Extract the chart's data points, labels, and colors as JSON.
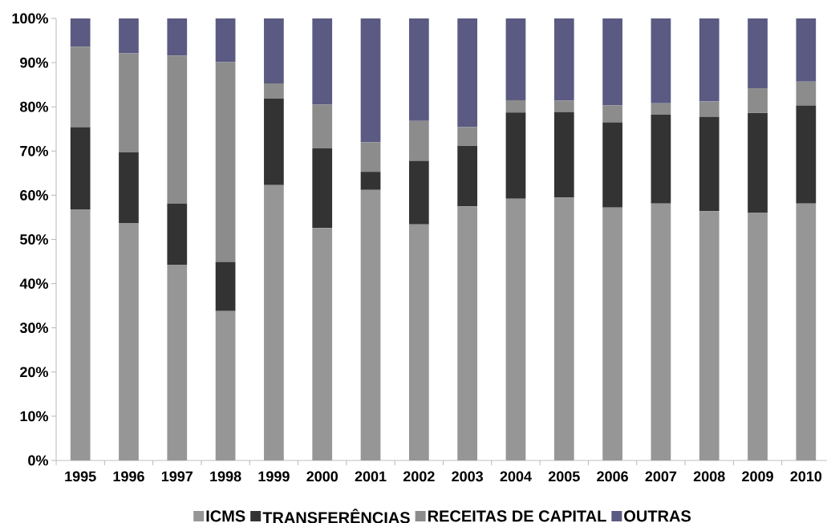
{
  "chart_data": {
    "type": "bar",
    "stacked": true,
    "categories": [
      "1995",
      "1996",
      "1997",
      "1998",
      "1999",
      "2000",
      "2001",
      "2002",
      "2003",
      "2004",
      "2005",
      "2006",
      "2007",
      "2008",
      "2009",
      "2010"
    ],
    "series": [
      {
        "name": "ICMS",
        "color": "#969696",
        "values": [
          56.8,
          53.7,
          44.3,
          33.8,
          62.3,
          52.6,
          61.2,
          53.4,
          57.5,
          59.2,
          59.5,
          57.2,
          58.1,
          56.4,
          56.1,
          58.1
        ]
      },
      {
        "name": "TRANSFERÊNCIAS",
        "color": "#333333",
        "values": [
          18.6,
          16.0,
          13.8,
          11.1,
          19.6,
          18.0,
          4.1,
          14.4,
          13.7,
          19.5,
          19.3,
          19.3,
          20.1,
          21.3,
          22.5,
          22.2
        ]
      },
      {
        "name": "RECEITAS DE CAPITAL",
        "color": "#8c8c8c",
        "values": [
          18.2,
          22.4,
          33.5,
          45.2,
          3.4,
          9.9,
          6.7,
          9.0,
          4.2,
          2.8,
          2.6,
          3.8,
          2.6,
          3.5,
          5.6,
          5.4
        ]
      },
      {
        "name": "OUTRAS",
        "color": "#5a5a82",
        "values": [
          6.4,
          7.9,
          8.4,
          9.9,
          14.7,
          19.5,
          28.0,
          23.2,
          24.6,
          18.5,
          18.6,
          19.7,
          19.2,
          18.8,
          15.8,
          14.3
        ]
      }
    ],
    "ylim": [
      0,
      100
    ],
    "yticks": [
      {
        "value": 0,
        "label": "0%"
      },
      {
        "value": 10,
        "label": "10%"
      },
      {
        "value": 20,
        "label": "20%"
      },
      {
        "value": 30,
        "label": "30%"
      },
      {
        "value": 40,
        "label": "40%"
      },
      {
        "value": 50,
        "label": "50%"
      },
      {
        "value": 60,
        "label": "60%"
      },
      {
        "value": 70,
        "label": "70%"
      },
      {
        "value": 80,
        "label": "80%"
      },
      {
        "value": 90,
        "label": "90%"
      },
      {
        "value": 100,
        "label": "100%"
      }
    ],
    "legend": "bottom"
  }
}
